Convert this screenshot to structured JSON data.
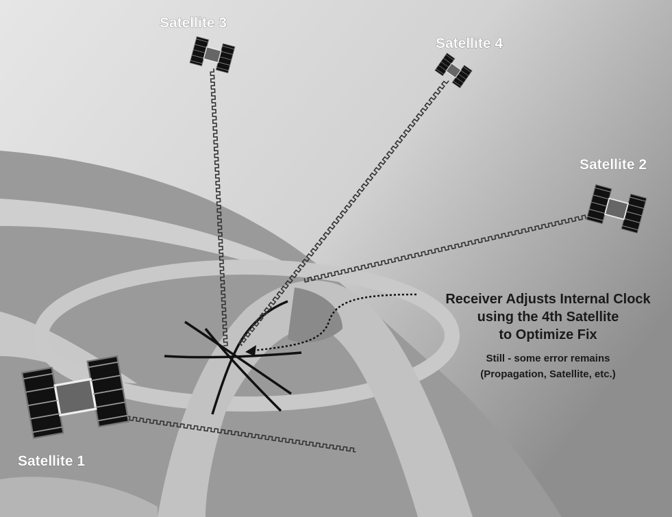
{
  "satellites": [
    {
      "label": "Satellite 1"
    },
    {
      "label": "Satellite 2"
    },
    {
      "label": "Satellite 3"
    },
    {
      "label": "Satellite 4"
    }
  ],
  "caption": {
    "lines": [
      "Receiver Adjusts Internal Clock",
      "using the 4th Satellite",
      "to Optimize Fix"
    ]
  },
  "note": {
    "lines": [
      "Still - some error remains",
      "(Propagation, Satellite, etc.)"
    ]
  }
}
